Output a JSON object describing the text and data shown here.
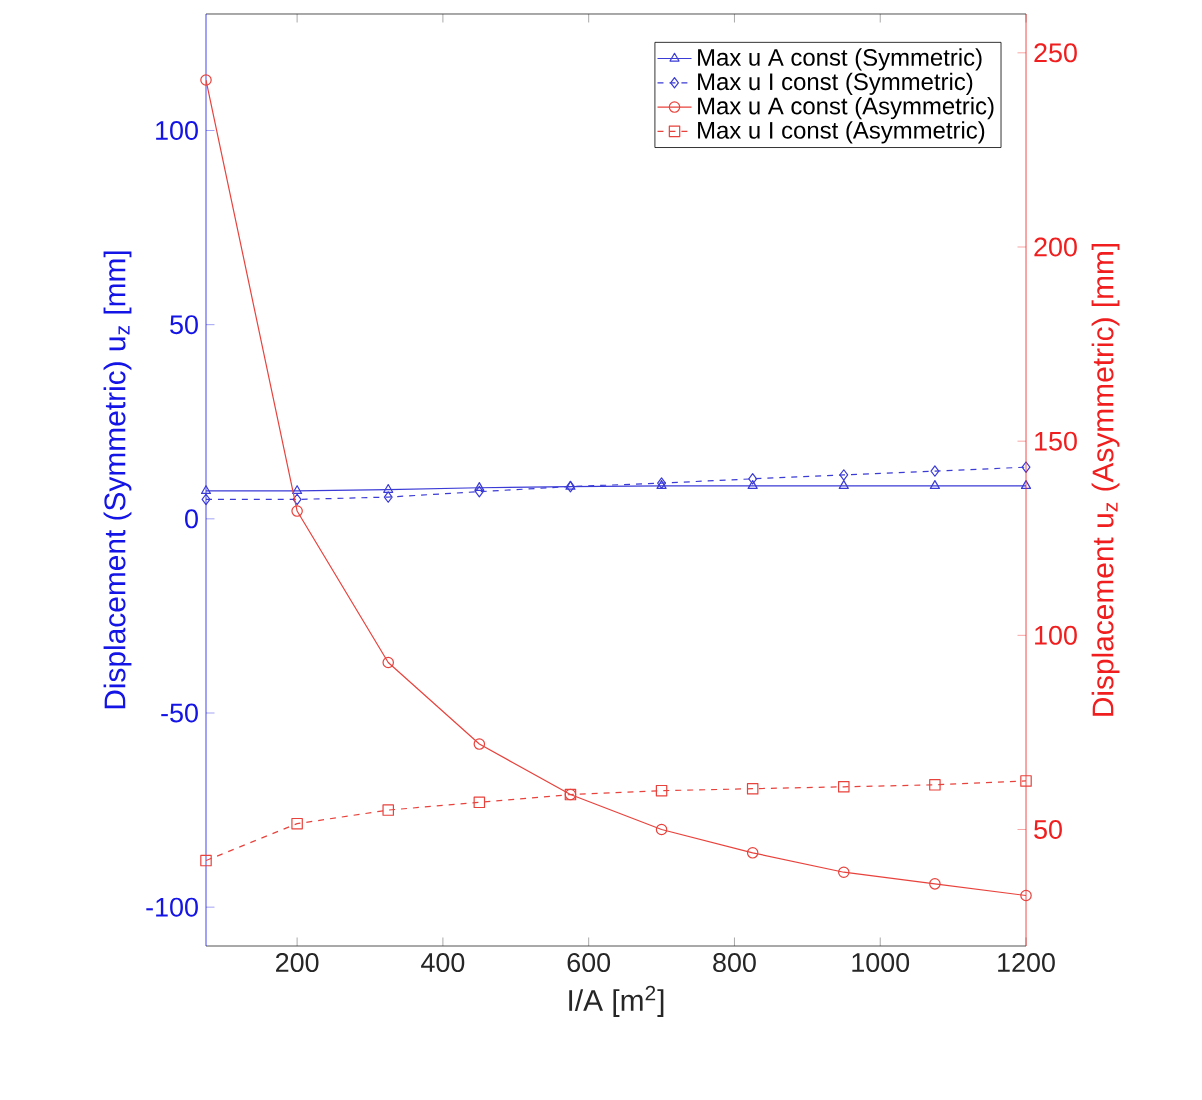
{
  "chart_data": {
    "type": "line",
    "xlabel": "I/A [m$^{2}$]",
    "ylabel": "Displacement (Symmetric) u$_{z}$ [mm]",
    "y2label": "Displacement u$_{z}$ (Asymmetric) [mm]",
    "x": [
      75,
      200,
      325,
      450,
      575,
      700,
      825,
      950,
      1075,
      1200
    ],
    "xlim": [
      75,
      1200
    ],
    "xticks": [
      200,
      400,
      600,
      800,
      1000,
      1200
    ],
    "ylim": [
      -110,
      130
    ],
    "yticks": [
      -100,
      -50,
      0,
      50,
      100
    ],
    "y2lim": [
      20,
      260
    ],
    "y2ticks": [
      50,
      100,
      150,
      200,
      250
    ],
    "legend": "top right",
    "grid": false,
    "series": [
      {
        "name": "Max u A const (Symmetric)",
        "color": "#3b3bd6",
        "marker": "triangle",
        "line_style": "solid",
        "values": [
          7.2,
          7.2,
          7.5,
          8,
          8.3,
          8.5,
          8.5,
          8.5,
          8.5,
          8.5
        ]
      },
      {
        "name": "Max u I const (Symmetric)",
        "color": "#3b3bd6",
        "marker": "diamond",
        "line_style": "dashed",
        "values": [
          5,
          5,
          5.6,
          7,
          8.3,
          9.2,
          10.3,
          11.3,
          12.3,
          13.3
        ]
      },
      {
        "name": "Max u A const (Asymmetric)",
        "color": "#e8423c",
        "marker": "circle",
        "line_style": "solid",
        "axis": "y2",
        "values": [
          243,
          132,
          93,
          72,
          59,
          50,
          44,
          39,
          36,
          33
        ]
      },
      {
        "name": "Max u I const (Asymmetric)",
        "color": "#e8423c",
        "marker": "square",
        "line_style": "dashed",
        "axis": "y2",
        "values": [
          42,
          51.5,
          55,
          57,
          59,
          60,
          60.5,
          61,
          61.5,
          62.5
        ]
      }
    ]
  }
}
